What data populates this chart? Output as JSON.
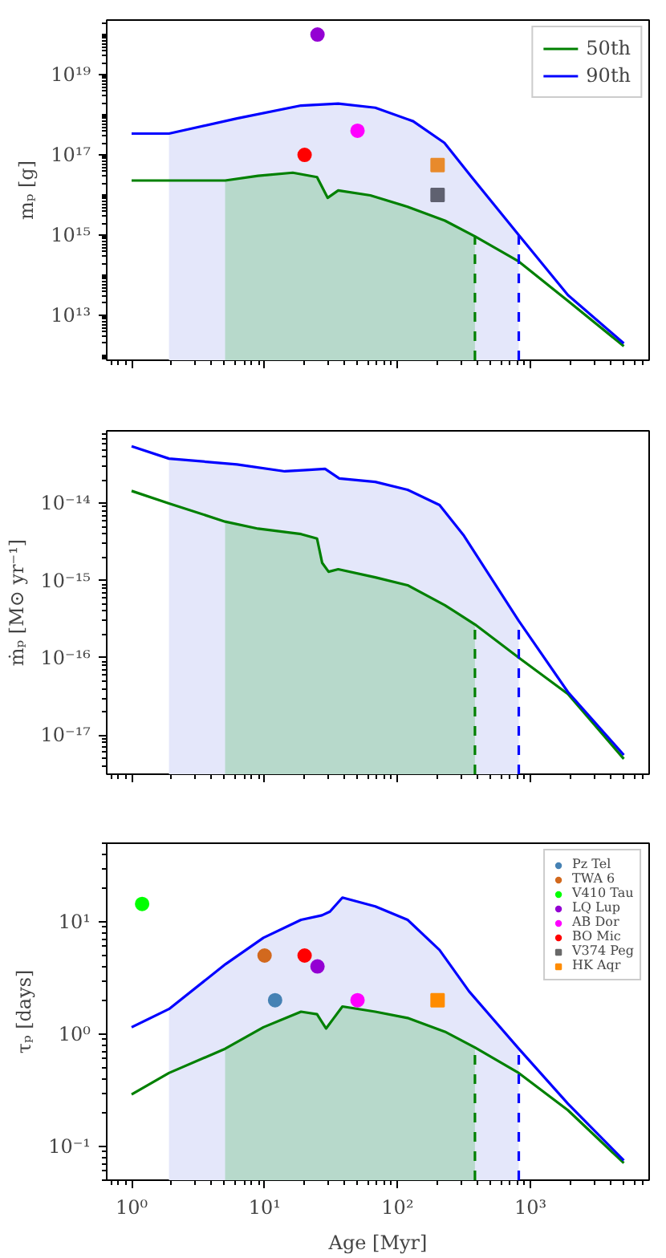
{
  "chart_data": [
    {
      "type": "line",
      "ylabel": "mₚ [g]",
      "log": "xy",
      "xlim": [
        0.65,
        7800
      ],
      "ylim": [
        760000000000.0,
        2.3e+20
      ],
      "xticks": [
        {
          "value": 1,
          "label": null
        },
        {
          "value": 10,
          "label": null
        },
        {
          "value": 100,
          "label": null
        },
        {
          "value": 1000,
          "label": null
        }
      ],
      "yticks": [
        {
          "value": 10000000000000.0,
          "label": "10¹³"
        },
        {
          "value": 1000000000000000.0,
          "label": "10¹⁵"
        },
        {
          "value": 1e+17,
          "label": "10¹⁷"
        },
        {
          "value": 1e+19,
          "label": "10¹⁹"
        }
      ],
      "tick_labels": "y",
      "grid": false,
      "legend": "top right",
      "series": [
        {
          "color": "#e4e7fa",
          "type": "area",
          "x": [
            1.91,
            6.2,
            18.8,
            35.8,
            68,
            131,
            225,
            361,
            816
          ],
          "values": [
            3.4e+17,
            8.1e+17,
            1.7e+18,
            1.9e+18,
            1.5e+18,
            6.9e+17,
            2e+17,
            null,
            1000000000000000.0
          ]
        },
        {
          "color": "#b7d9cb",
          "type": "area",
          "x": [
            5.05,
            8.95,
            16.3,
            24.8,
            29.8,
            35.8,
            62.4,
            119,
            227,
            382
          ],
          "values": [
            2.3e+16,
            3e+16,
            3.6e+16,
            2.8e+16,
            8500000000000000.0,
            1.3e+16,
            9800000000000000.0,
            5100000000000000.0,
            2300000000000000.0,
            930000000000000.0
          ]
        },
        {
          "name": "50th",
          "color": "#008000",
          "x": [
            1,
            5.05,
            8.95,
            16.3,
            24.8,
            29.8,
            35.8,
            62.4,
            119,
            227,
            382,
            816,
            1910,
            5030
          ],
          "values": [
            2.3e+16,
            2.3e+16,
            3e+16,
            3.6e+16,
            2.8e+16,
            8500000000000000.0,
            1.3e+16,
            9800000000000000.0,
            5100000000000000.0,
            2300000000000000.0,
            930000000000000.0,
            220000000000000.0,
            23000000000000.0,
            1700000000000.0
          ]
        },
        {
          "name": "90th",
          "color": "#0000ff",
          "x": [
            1,
            1.91,
            6.2,
            18.8,
            35.8,
            68,
            131,
            225,
            361,
            816,
            1910,
            5030
          ],
          "values": [
            3.4e+17,
            3.4e+17,
            8.1e+17,
            1.7e+18,
            1.9e+18,
            1.5e+18,
            6.9e+17,
            2e+17,
            2.8e+16,
            1000000000000000.0,
            32000000000000.0,
            2000000000000.0
          ]
        },
        {
          "color": "#9400d3",
          "type": "scatter",
          "marker": "circle",
          "x": [
            25
          ],
          "values": [
            1e+20
          ]
        },
        {
          "color": "#ff00ff",
          "type": "scatter",
          "marker": "circle",
          "x": [
            50
          ],
          "values": [
            4e+17
          ]
        },
        {
          "color": "#ff0000",
          "type": "scatter",
          "marker": "circle",
          "x": [
            20
          ],
          "values": [
            1e+17
          ]
        },
        {
          "color": "#5f6170",
          "type": "scatter",
          "marker": "square",
          "x": [
            200
          ],
          "values": [
            1e+16
          ]
        },
        {
          "color": "#e88a2c",
          "type": "scatter",
          "marker": "square",
          "x": [
            200
          ],
          "values": [
            5.6e+16
          ]
        }
      ],
      "ref_lines": [
        {
          "axis": "x",
          "value": 382,
          "color": "#008000",
          "line_style": "dashed"
        },
        {
          "axis": "x",
          "value": 816,
          "color": "#0000ff",
          "line_style": "dashed"
        }
      ]
    },
    {
      "type": "line",
      "ylabel": "ṁₚ [M⊙ yr⁻¹]",
      "log": "xy",
      "xlim": [
        0.65,
        7800
      ],
      "ylim": [
        3.1e-18,
        8.7e-14
      ],
      "xticks": [
        {
          "value": 1,
          "label": null
        },
        {
          "value": 10,
          "label": null
        },
        {
          "value": 100,
          "label": null
        },
        {
          "value": 1000,
          "label": null
        }
      ],
      "yticks": [
        {
          "value": 1e-17,
          "label": "10⁻¹⁷"
        },
        {
          "value": 1e-16,
          "label": "10⁻¹⁶"
        },
        {
          "value": 1e-15,
          "label": "10⁻¹⁵"
        },
        {
          "value": 1e-14,
          "label": "10⁻¹⁴"
        }
      ],
      "tick_labels": "y",
      "grid": false,
      "series": [
        {
          "color": "#e4e7fa",
          "type": "area",
          "x": [
            1.91,
            6.2,
            14.2,
            20.5,
            28.5,
            36.5,
            68,
            119,
            207,
            316,
            816
          ],
          "values": [
            3.8e-14,
            3.2e-14,
            2.6e-14,
            2.7e-14,
            2.8e-14,
            2.1e-14,
            1.9e-14,
            1.5e-14,
            9.5e-15,
            3.8e-15,
            3e-16
          ]
        },
        {
          "color": "#b7d9cb",
          "type": "area",
          "x": [
            5.05,
            8.95,
            18.8,
            24.8,
            27.1,
            30.3,
            35.8,
            68,
            119,
            227,
            382
          ],
          "values": [
            5.8e-15,
            4.7e-15,
            4e-15,
            3.5e-15,
            1.7e-15,
            1.3e-15,
            1.4e-15,
            1.1e-15,
            8.7e-16,
            4.8e-16,
            2.7e-16
          ]
        },
        {
          "color": "#008000",
          "x": [
            1,
            1.91,
            5.05,
            8.95,
            18.8,
            24.8,
            27.1,
            30.3,
            35.8,
            68,
            119,
            227,
            382,
            816,
            1910,
            5030
          ],
          "values": [
            1.45e-14,
            1e-14,
            5.8e-15,
            4.7e-15,
            4e-15,
            3.5e-15,
            1.7e-15,
            1.3e-15,
            1.4e-15,
            1.1e-15,
            8.7e-16,
            4.8e-16,
            2.7e-16,
            1e-16,
            3.4e-17,
            4.9e-18
          ]
        },
        {
          "color": "#0000ff",
          "x": [
            1,
            1.91,
            6.2,
            14.2,
            20.5,
            28.5,
            36.5,
            68,
            119,
            207,
            316,
            816,
            1910,
            5030
          ],
          "values": [
            5.5e-14,
            3.8e-14,
            3.2e-14,
            2.6e-14,
            2.7e-14,
            2.8e-14,
            2.1e-14,
            1.9e-14,
            1.5e-14,
            9.5e-15,
            3.8e-15,
            3e-16,
            3.6e-17,
            5.5e-18
          ]
        }
      ],
      "ref_lines": [
        {
          "axis": "x",
          "value": 382,
          "color": "#008000",
          "line_style": "dashed"
        },
        {
          "axis": "x",
          "value": 816,
          "color": "#0000ff",
          "line_style": "dashed"
        }
      ]
    },
    {
      "type": "line",
      "ylabel": "τₚ [days]",
      "xlabel": "Age [Myr]",
      "log": "xy",
      "xlim": [
        0.65,
        7800
      ],
      "ylim": [
        0.05,
        50
      ],
      "xticks": [
        {
          "value": 1,
          "label": "10⁰"
        },
        {
          "value": 10,
          "label": "10¹"
        },
        {
          "value": 100,
          "label": "10²"
        },
        {
          "value": 1000,
          "label": "10³"
        }
      ],
      "yticks": [
        {
          "value": 0.1,
          "label": "10⁻¹"
        },
        {
          "value": 1,
          "label": "10⁰"
        },
        {
          "value": 10,
          "label": "10¹"
        }
      ],
      "grid": false,
      "legend": "top right",
      "series": [
        {
          "color": "#e4e7fa",
          "type": "area",
          "x": [
            1.91,
            5.1,
            9.8,
            18.8,
            27,
            31,
            38.5,
            68,
            119,
            207,
            345,
            816
          ],
          "values": [
            1.67,
            4.2,
            7.2,
            10.4,
            11.4,
            12.3,
            16.4,
            13.7,
            10.4,
            5.6,
            2.4,
            0.74
          ]
        },
        {
          "color": "#b7d9cb",
          "type": "area",
          "x": [
            5.05,
            9.8,
            18.8,
            24.8,
            29,
            32.6,
            38.5,
            68,
            119,
            227,
            382
          ],
          "values": [
            0.74,
            1.15,
            1.58,
            1.5,
            1.12,
            1.35,
            1.76,
            1.58,
            1.39,
            1.05,
            0.76
          ]
        },
        {
          "color": "#008000",
          "x": [
            1,
            1.91,
            5.05,
            9.8,
            18.8,
            24.8,
            29,
            32.6,
            38.5,
            68,
            119,
            227,
            382,
            816,
            1910,
            5030
          ],
          "values": [
            0.29,
            0.45,
            0.74,
            1.15,
            1.58,
            1.5,
            1.12,
            1.35,
            1.76,
            1.58,
            1.39,
            1.05,
            0.76,
            0.45,
            0.21,
            0.071
          ]
        },
        {
          "color": "#0000ff",
          "x": [
            1,
            1.91,
            5.1,
            9.8,
            18.8,
            27,
            31,
            38.5,
            68,
            119,
            207,
            345,
            816,
            1910,
            5030
          ],
          "values": [
            1.15,
            1.67,
            4.2,
            7.2,
            10.4,
            11.4,
            12.3,
            16.4,
            13.7,
            10.4,
            5.6,
            2.4,
            0.74,
            0.24,
            0.075
          ]
        },
        {
          "name": "Pz Tel",
          "color": "#4682b4",
          "type": "scatter",
          "marker": "circle",
          "x": [
            12
          ],
          "values": [
            2.0
          ]
        },
        {
          "name": "TWA 6",
          "color": "#d2691e",
          "type": "scatter",
          "marker": "circle",
          "x": [
            10
          ],
          "values": [
            5.0
          ]
        },
        {
          "name": "V410 Tau",
          "color": "#00ff00",
          "type": "scatter",
          "marker": "circle",
          "x": [
            1.2
          ],
          "values": [
            14.4
          ]
        },
        {
          "name": "LQ Lup",
          "color": "#9400d3",
          "type": "scatter",
          "marker": "circle",
          "x": [
            25
          ],
          "values": [
            4.0
          ]
        },
        {
          "name": "AB Dor",
          "color": "#ff00ff",
          "type": "scatter",
          "marker": "circle",
          "x": [
            50
          ],
          "values": [
            2.0
          ]
        },
        {
          "name": "BO Mic",
          "color": "#ff0000",
          "type": "scatter",
          "marker": "circle",
          "x": [
            20
          ],
          "values": [
            5.0
          ]
        },
        {
          "name": "V374 Peg",
          "color": "#696969",
          "type": "scatter",
          "marker": "square"
        },
        {
          "name": "HK Aqr",
          "color": "#ff8c00",
          "type": "scatter",
          "marker": "square",
          "x": [
            200
          ],
          "values": [
            2.0
          ]
        }
      ],
      "ref_lines": [
        {
          "axis": "x",
          "value": 382,
          "color": "#008000",
          "line_style": "dashed"
        },
        {
          "axis": "x",
          "value": 816,
          "color": "#0000ff",
          "line_style": "dashed"
        }
      ]
    }
  ]
}
